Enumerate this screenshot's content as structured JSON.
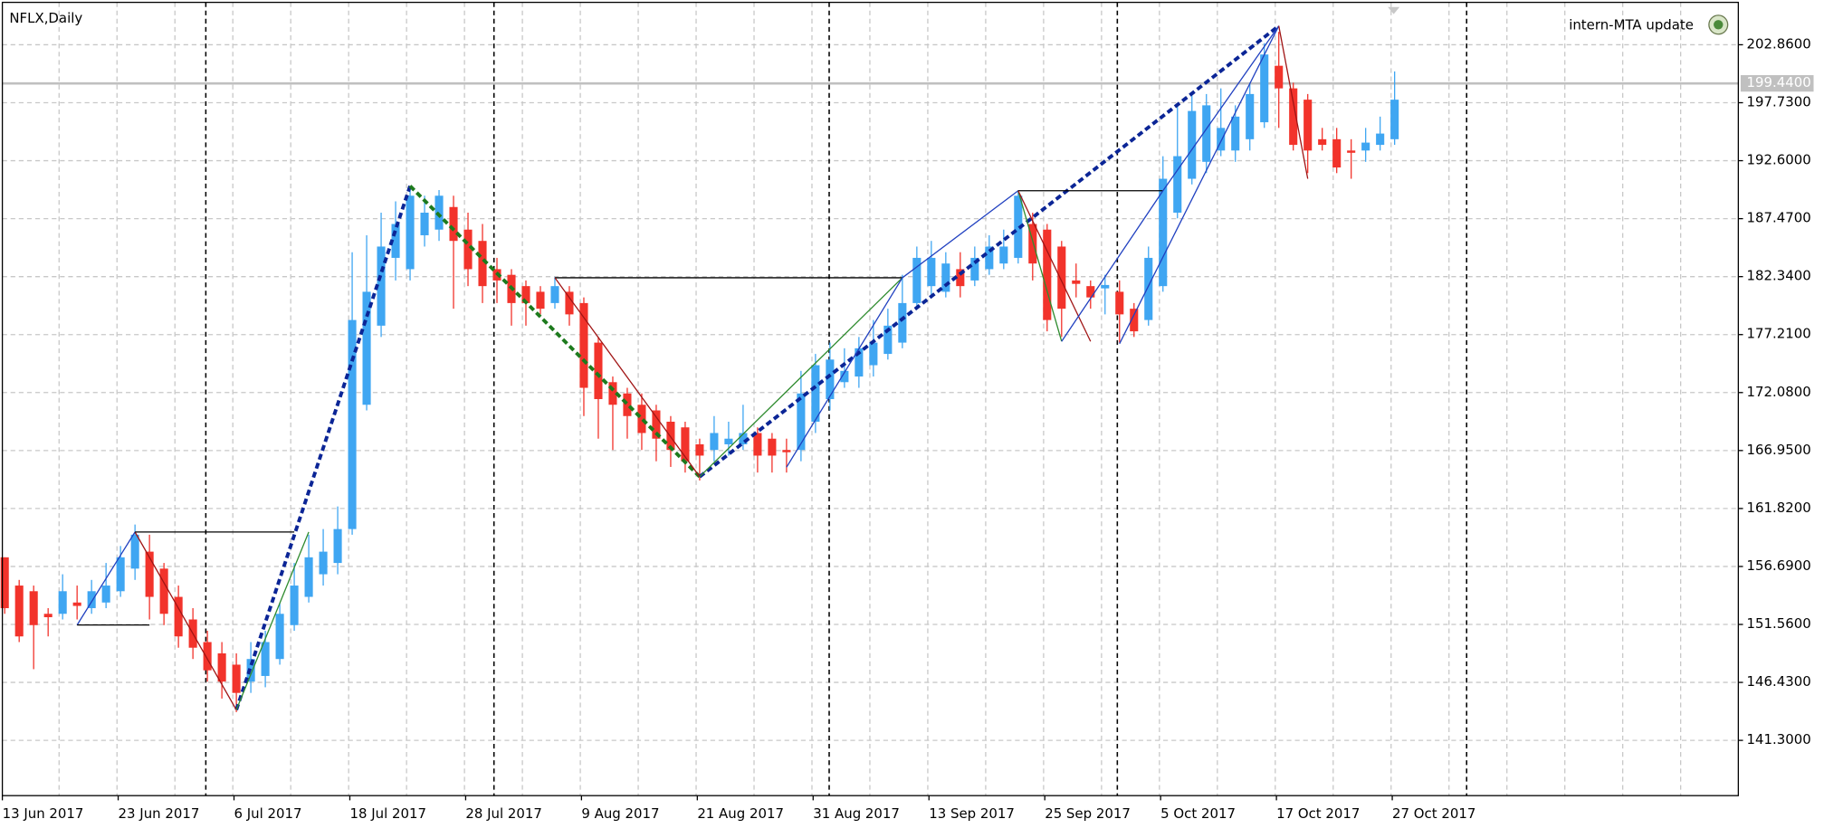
{
  "chart_data": {
    "type": "candlestick",
    "title": "NFLX,Daily",
    "indicator_label": "intern-MTA update",
    "up_color": "#3fa6f2",
    "down_color": "#f2332b",
    "grid": true,
    "categories": [
      "13 Jun 2017",
      null,
      null,
      null,
      null,
      null,
      null,
      null,
      "23 Jun 2017",
      null,
      null,
      null,
      null,
      null,
      null,
      null,
      "6 Jul 2017",
      null,
      null,
      null,
      null,
      null,
      null,
      null,
      "18 Jul 2017",
      null,
      null,
      null,
      null,
      null,
      null,
      null,
      "28 Jul 2017",
      null,
      null,
      null,
      null,
      null,
      null,
      null,
      "9 Aug 2017",
      null,
      null,
      null,
      null,
      null,
      null,
      null,
      "21 Aug 2017",
      null,
      null,
      null,
      null,
      null,
      null,
      null,
      "31 Aug 2017",
      null,
      null,
      null,
      null,
      null,
      null,
      null,
      "13 Sep 2017",
      null,
      null,
      null,
      null,
      null,
      null,
      null,
      "25 Sep 2017",
      null,
      null,
      null,
      null,
      null,
      null,
      null,
      "5 Oct 2017",
      null,
      null,
      null,
      null,
      null,
      null,
      null,
      "17 Oct 2017",
      null,
      null,
      null,
      null,
      null,
      null,
      null,
      "27 Oct 2017"
    ],
    "open": [
      157.5,
      155,
      154.5,
      152.5,
      152.5,
      153.5,
      153,
      153.5,
      154.5,
      156.5,
      158,
      156.5,
      154,
      152,
      150,
      149,
      148,
      146.5,
      147,
      148.5,
      151.5,
      154,
      156,
      157,
      160,
      171,
      178,
      184,
      183,
      186,
      186.5,
      188.5,
      186.5,
      185.5,
      183,
      182.5,
      181.5,
      181,
      180,
      181,
      180,
      176.5,
      173,
      172,
      171,
      170.5,
      169.5,
      169,
      167.5,
      167,
      167.5,
      167.5,
      168.5,
      168,
      167,
      167,
      169.5,
      171.5,
      173,
      173.5,
      174.5,
      175.5,
      176.5,
      180,
      181.5,
      181,
      183,
      182,
      183,
      183.5,
      184,
      187,
      186.5,
      185,
      182,
      181.5,
      181.3,
      181,
      179.5,
      178.5,
      181.5,
      188,
      191,
      192.5,
      193.5,
      193.5,
      194.5,
      196,
      201,
      199,
      198,
      194.5,
      194.5,
      193.5,
      193.5,
      194,
      194.5
    ],
    "high": [
      157.5,
      155.5,
      155,
      153,
      156,
      155,
      155.5,
      157,
      158.5,
      160.4,
      159.5,
      157,
      155,
      153,
      151,
      150,
      149,
      150,
      151,
      153.5,
      157,
      159.5,
      160,
      162,
      184.5,
      186,
      188,
      189,
      190.3,
      189.5,
      190,
      189.5,
      188,
      187,
      184,
      183,
      182,
      181.5,
      182.3,
      181.5,
      180.5,
      177,
      173.5,
      172.5,
      172,
      171,
      170,
      169.5,
      168,
      170,
      169.5,
      171,
      169,
      168.5,
      168,
      174,
      175.5,
      176.5,
      176,
      177,
      178.5,
      179.5,
      182.5,
      185,
      185.5,
      184.5,
      184.5,
      185,
      186,
      186.5,
      190,
      188,
      187,
      185.5,
      183.5,
      182,
      182.5,
      182,
      180,
      185,
      193,
      197.5,
      198.5,
      198.5,
      199,
      197.5,
      199.5,
      203,
      204,
      199.5,
      198.5,
      195.5,
      195.5,
      194.5,
      195.5,
      196.5,
      200.5
    ],
    "low": [
      152.5,
      150,
      147.6,
      150.5,
      152,
      152,
      152.5,
      153,
      154,
      155.5,
      152,
      151.5,
      149.5,
      148.5,
      146.5,
      145,
      143.8,
      145.5,
      146,
      148,
      151,
      153.5,
      155,
      156,
      159.5,
      170.5,
      177,
      182,
      182,
      185,
      185.5,
      179.5,
      181.5,
      180,
      180,
      178,
      178,
      179,
      179.5,
      178,
      170,
      168,
      167,
      168,
      167,
      166,
      165.5,
      165,
      164.3,
      166,
      166.5,
      167,
      165,
      165,
      165,
      166,
      168.5,
      170.5,
      172.5,
      172.5,
      173.5,
      175,
      176,
      179.5,
      180.5,
      180.5,
      180.5,
      181.5,
      182.5,
      183,
      183.5,
      182,
      177.5,
      177,
      180.5,
      179.5,
      179,
      176.5,
      177,
      178,
      181,
      187.5,
      190.5,
      191.5,
      193,
      192.5,
      193.5,
      195.5,
      195.5,
      193.5,
      191.5,
      193.5,
      191.5,
      191,
      192.5,
      193.5,
      194
    ],
    "close": [
      153,
      150.5,
      151.5,
      152.2,
      154.5,
      153.2,
      154.5,
      155,
      157.5,
      159.5,
      154,
      152.5,
      150.5,
      149.5,
      147.5,
      146.5,
      145.5,
      148.5,
      150,
      152.5,
      155,
      157.5,
      158,
      160,
      178.5,
      181,
      185,
      187,
      189.5,
      188,
      189.5,
      185.5,
      183,
      181.5,
      182,
      180,
      180,
      179.5,
      181.5,
      179,
      172.5,
      171.5,
      171,
      170,
      168.5,
      168,
      167,
      166,
      166.5,
      168.5,
      168,
      168.5,
      166.5,
      166.5,
      166.8,
      172,
      174.5,
      175,
      174,
      176,
      176.5,
      178,
      180,
      184,
      184,
      183.5,
      181.5,
      184,
      185,
      185,
      189.5,
      183.5,
      178.5,
      179.5,
      181.7,
      180.5,
      181.6,
      179,
      177.5,
      184,
      191,
      193,
      197,
      197.5,
      195.5,
      196.5,
      198.5,
      202,
      199,
      194,
      193.5,
      194,
      192,
      193.3,
      194.2,
      195,
      198
    ],
    "ylim": [
      136.41,
      206.82
    ],
    "yticks": [
      {
        "value": 202.86,
        "label": "202.8600"
      },
      {
        "value": 197.73,
        "label": "197.7300"
      },
      {
        "value": 192.6,
        "label": "192.6000"
      },
      {
        "value": 187.47,
        "label": "187.4700"
      },
      {
        "value": 182.34,
        "label": "182.3400"
      },
      {
        "value": 177.21,
        "label": "177.2100"
      },
      {
        "value": 172.08,
        "label": "172.0800"
      },
      {
        "value": 166.95,
        "label": "166.9500"
      },
      {
        "value": 161.82,
        "label": "161.8200"
      },
      {
        "value": 156.69,
        "label": "156.6900"
      },
      {
        "value": 151.56,
        "label": "151.5600"
      },
      {
        "value": 146.43,
        "label": "146.4300"
      },
      {
        "value": 141.3,
        "label": "141.3000"
      }
    ],
    "current_price": {
      "value": 199.44,
      "label": "199.4400"
    },
    "overlays": [
      {
        "color": "#0b2596",
        "dashed": true,
        "x": [
          16,
          28
        ],
        "values": [
          144.0,
          190.36
        ]
      },
      {
        "color": "#1d7a1d",
        "dashed": true,
        "x": [
          28,
          48
        ],
        "values": [
          190.36,
          164.63
        ]
      },
      {
        "color": "#0b2596",
        "dashed": true,
        "x": [
          48,
          88
        ],
        "values": [
          164.63,
          204.53
        ]
      },
      {
        "color": "#2040c0",
        "dashed": false,
        "x": [
          5,
          9
        ],
        "values": [
          151.51,
          159.74
        ]
      },
      {
        "color": "#a01414",
        "dashed": false,
        "x": [
          9,
          16
        ],
        "values": [
          159.74,
          144.0
        ]
      },
      {
        "color": "#2e8b2e",
        "dashed": false,
        "x": [
          16,
          21
        ],
        "values": [
          144.0,
          159.74
        ]
      },
      {
        "color": "#000000",
        "dashed": false,
        "x": [
          9,
          20
        ],
        "values": [
          159.74,
          159.74
        ]
      },
      {
        "color": "#000000",
        "dashed": false,
        "x": [
          5,
          10
        ],
        "values": [
          151.51,
          151.51
        ]
      },
      {
        "color": "#000000",
        "dashed": false,
        "x": [
          38,
          62
        ],
        "values": [
          182.24,
          182.24
        ]
      },
      {
        "color": "#a01414",
        "dashed": false,
        "x": [
          38,
          48
        ],
        "values": [
          182.24,
          164.63
        ]
      },
      {
        "color": "#2e8b2e",
        "dashed": false,
        "x": [
          48,
          62
        ],
        "values": [
          164.63,
          182.24
        ]
      },
      {
        "color": "#2040c0",
        "dashed": false,
        "x": [
          54,
          62
        ],
        "values": [
          165.47,
          182.24
        ]
      },
      {
        "color": "#2040c0",
        "dashed": false,
        "x": [
          62,
          70
        ],
        "values": [
          182.24,
          189.94
        ]
      },
      {
        "color": "#000000",
        "dashed": false,
        "x": [
          70,
          80
        ],
        "values": [
          189.94,
          189.94
        ]
      },
      {
        "color": "#2e8b2e",
        "dashed": false,
        "x": [
          70,
          73
        ],
        "values": [
          189.94,
          176.61
        ]
      },
      {
        "color": "#a01414",
        "dashed": false,
        "x": [
          70,
          75
        ],
        "values": [
          189.94,
          176.61
        ]
      },
      {
        "color": "#2040c0",
        "dashed": false,
        "x": [
          73,
          80
        ],
        "values": [
          176.61,
          189.94
        ]
      },
      {
        "color": "#2040c0",
        "dashed": false,
        "x": [
          77,
          88
        ],
        "values": [
          176.4,
          204.53
        ]
      },
      {
        "color": "#2040c0",
        "dashed": false,
        "x": [
          80,
          88
        ],
        "values": [
          189.94,
          204.53
        ]
      },
      {
        "color": "#a01414",
        "dashed": false,
        "x": [
          88,
          90
        ],
        "values": [
          204.53,
          191.0
        ]
      }
    ]
  }
}
